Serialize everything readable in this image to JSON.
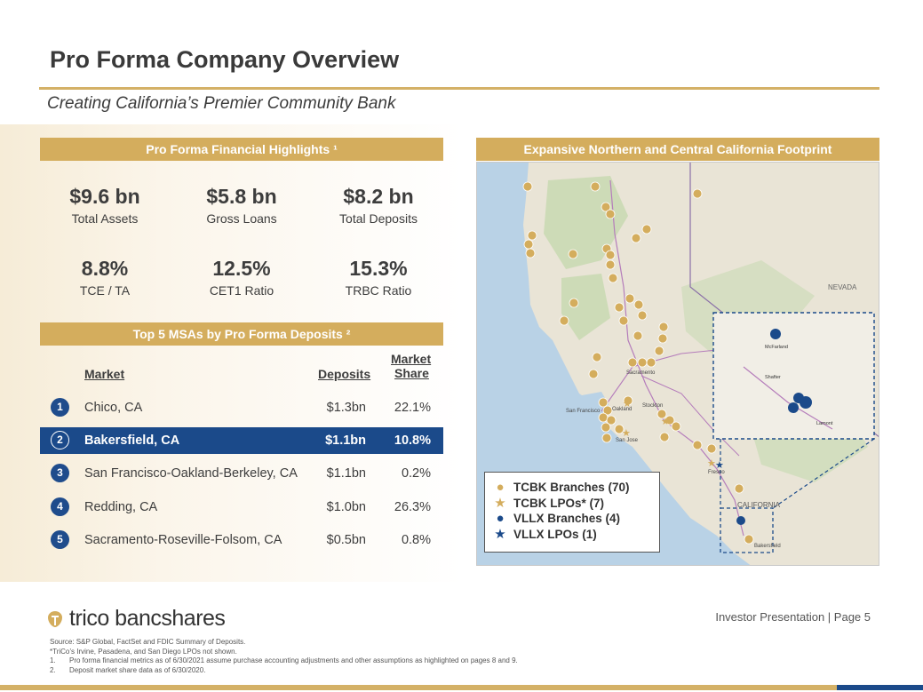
{
  "header": {
    "title": "Pro Forma Company Overview",
    "subtitle": "Creating California’s Premier Community Bank"
  },
  "highlights": {
    "header": "Pro Forma Financial Highlights ¹",
    "items": [
      {
        "value": "$9.6 bn",
        "label": "Total Assets"
      },
      {
        "value": "$5.8 bn",
        "label": "Gross Loans"
      },
      {
        "value": "$8.2 bn",
        "label": "Total Deposits"
      },
      {
        "value": "8.8%",
        "label": "TCE / TA"
      },
      {
        "value": "12.5%",
        "label": "CET1 Ratio"
      },
      {
        "value": "15.3%",
        "label": "TRBC Ratio"
      }
    ]
  },
  "msa": {
    "header": "Top 5 MSAs by Pro Forma Deposits ²",
    "col_market": "Market",
    "col_deposits": "Deposits",
    "col_share_line1": "Market",
    "col_share_line2": "Share",
    "rows": [
      {
        "rank": "1",
        "market": "Chico, CA",
        "deposits": "$1.3bn",
        "share": "22.1%"
      },
      {
        "rank": "2",
        "market": "Bakersfield, CA",
        "deposits": "$1.1bn",
        "share": "10.8%"
      },
      {
        "rank": "3",
        "market": "San Francisco-Oakland-Berkeley, CA",
        "deposits": "$1.1bn",
        "share": "0.2%"
      },
      {
        "rank": "4",
        "market": "Redding, CA",
        "deposits": "$1.0bn",
        "share": "26.3%"
      },
      {
        "rank": "5",
        "market": "Sacramento-Roseville-Folsom, CA",
        "deposits": "$0.5bn",
        "share": "0.8%"
      }
    ]
  },
  "map": {
    "header": "Expansive Northern and Central California Footprint",
    "labels": {
      "nevada": "NEVADA",
      "california": "CALIFORNIA",
      "sacramento": "Sacramento",
      "san_francisco": "San Francisco",
      "oakland": "Oakland",
      "san_jose": "San Jose",
      "stockton": "Stockton",
      "fresno": "Fresno",
      "bakersfield": "Bakersfield",
      "mcfarland": "McFarland",
      "lamont": "Lamont",
      "shafter": "Shafter"
    },
    "legend": [
      {
        "symbol": "●",
        "color": "#d4ad5d",
        "label": "TCBK Branches (70)"
      },
      {
        "symbol": "★",
        "color": "#d4ad5d",
        "label": "TCBK LPOs* (7)"
      },
      {
        "symbol": "●",
        "color": "#1b4a8a",
        "label": "VLLX Branches (4)"
      },
      {
        "symbol": "★",
        "color": "#1b4a8a",
        "label": "VLLX LPOs (1)"
      }
    ]
  },
  "footer": {
    "logo_text": "trico bancshares",
    "page_info": "Investor Presentation | Page 5",
    "source": "Source: S&P Global, FactSet and FDIC Summary of Deposits.",
    "note_star": "*TriCo’s Irvine, Pasadena, and San Diego LPOs not shown.",
    "notes": [
      {
        "n": "1.",
        "text": "Pro forma financial metrics as of 6/30/2021 assume purchase accounting adjustments and other assumptions as highlighted on pages 8 and 9."
      },
      {
        "n": "2.",
        "text": "Deposit market share data as of 6/30/2020."
      }
    ]
  }
}
